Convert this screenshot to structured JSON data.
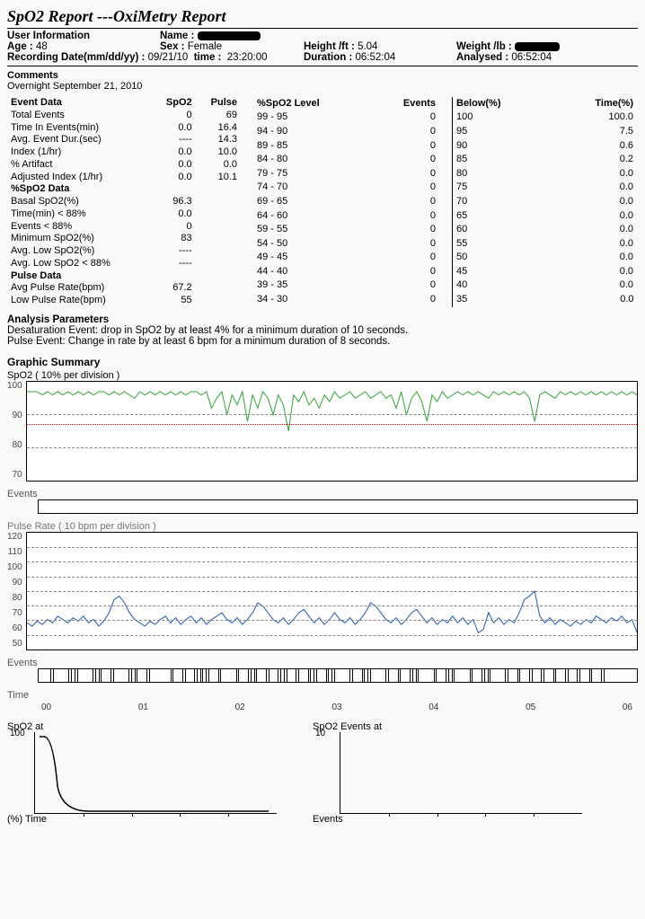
{
  "title": "SpO2 Report ---OxiMetry Report",
  "user_info": {
    "label": "User Information",
    "name_label": "Name :",
    "age_label": "Age :",
    "age": "48",
    "sex_label": "Sex :",
    "sex": "Female",
    "height_label": "Height /ft :",
    "height": "5.04",
    "weight_label": "Weight /lb :",
    "recdate_label": "Recording Date(mm/dd/yy) :",
    "recdate": "09/21/10",
    "time_label": "time :",
    "time": "23:20:00",
    "duration_label": "Duration :",
    "duration": "06:52:04",
    "analysed_label": "Analysed :",
    "analysed": "06:52:04"
  },
  "comments_label": "Comments",
  "comments": "Overnight September 21, 2010",
  "table1": {
    "headers": [
      "Event Data",
      "SpO2",
      "Pulse"
    ],
    "rows": [
      [
        "Total Events",
        "0",
        "69"
      ],
      [
        "Time In Events(min)",
        "0.0",
        "16.4"
      ],
      [
        "Avg. Event Dur.(sec)",
        "----",
        "14.3"
      ],
      [
        "Index (1/hr)",
        "0.0",
        "10.0"
      ],
      [
        "% Artifact",
        "0.0",
        "0.0"
      ],
      [
        "Adjusted Index (1/hr)",
        "0.0",
        "10.1"
      ]
    ],
    "sub1_label": "%SpO2 Data",
    "sub1_rows": [
      [
        "Basal SpO2(%)",
        "96.3",
        ""
      ],
      [
        "Time(min) < 88%",
        "0.0",
        ""
      ],
      [
        "Events < 88%",
        "0",
        ""
      ],
      [
        "Minimum SpO2(%)",
        "83",
        ""
      ],
      [
        "Avg. Low SpO2(%)",
        "----",
        ""
      ],
      [
        "Avg. Low SpO2 < 88%",
        "----",
        ""
      ]
    ],
    "sub2_label": "Pulse Data",
    "sub2_rows": [
      [
        "Avg Pulse Rate(bpm)",
        "67.2",
        ""
      ],
      [
        "Low Pulse Rate(bpm)",
        "55",
        ""
      ]
    ]
  },
  "table2": {
    "headers": [
      "%SpO2 Level",
      "Events"
    ],
    "rows": [
      [
        "99 - 95",
        "0"
      ],
      [
        "94 - 90",
        "0"
      ],
      [
        "89 - 85",
        "0"
      ],
      [
        "84 - 80",
        "0"
      ],
      [
        "79 - 75",
        "0"
      ],
      [
        "74 - 70",
        "0"
      ],
      [
        "69 - 65",
        "0"
      ],
      [
        "64 - 60",
        "0"
      ],
      [
        "59 - 55",
        "0"
      ],
      [
        "54 - 50",
        "0"
      ],
      [
        "49 - 45",
        "0"
      ],
      [
        "44 - 40",
        "0"
      ],
      [
        "39 - 35",
        "0"
      ],
      [
        "34 - 30",
        "0"
      ]
    ]
  },
  "table3": {
    "headers": [
      "Below(%)",
      "Time(%)"
    ],
    "rows": [
      [
        "100",
        "100.0"
      ],
      [
        "95",
        "7.5"
      ],
      [
        "90",
        "0.6"
      ],
      [
        "85",
        "0.2"
      ],
      [
        "80",
        "0.0"
      ],
      [
        "75",
        "0.0"
      ],
      [
        "70",
        "0.0"
      ],
      [
        "65",
        "0.0"
      ],
      [
        "60",
        "0.0"
      ],
      [
        "55",
        "0.0"
      ],
      [
        "50",
        "0.0"
      ],
      [
        "45",
        "0.0"
      ],
      [
        "40",
        "0.0"
      ],
      [
        "35",
        "0.0"
      ]
    ]
  },
  "analysis": {
    "label": "Analysis Parameters",
    "line1": "Desaturation Event: drop in SpO2 by at least 4% for a minimum duration of 10 seconds.",
    "line2": "Pulse Event: Change in rate by at least 6 bpm for a minimum duration of 8 seconds."
  },
  "graphic_label": "Graphic Summary",
  "spo2_chart": {
    "label": "SpO2      ( 10% per division )",
    "yticks": [
      "100",
      "90",
      "80",
      "70"
    ],
    "ylim": [
      70,
      100
    ],
    "grid_pct": [
      33.3,
      66.6
    ],
    "alert_pct": 43,
    "color": "#3aa53a",
    "bg": "#ffffff",
    "height": 110
  },
  "events1_label": "Events",
  "pulse_chart": {
    "label": "Pulse Rate  ( 10 bpm per division )",
    "yticks": [
      "120",
      "110",
      "100",
      "90",
      "80",
      "70",
      "60",
      "50"
    ],
    "ylim": [
      50,
      120
    ],
    "grid_count": 7,
    "color": "#2a5fb0",
    "height": 130
  },
  "events2_label": "Events",
  "time_label": "Time",
  "time_ticks": [
    "00",
    "01",
    "02",
    "03",
    "04",
    "05",
    "06"
  ],
  "sc1": {
    "title": "SpO2 at",
    "ymax": "100",
    "ylabel": "(%) Time"
  },
  "sc2": {
    "title": "SpO2 Events at",
    "ymax": "10",
    "ylabel": "Events"
  },
  "spo2_series": [
    97,
    97,
    97,
    96,
    97,
    96,
    97,
    96,
    97,
    96,
    97,
    96,
    97,
    96,
    97,
    97,
    96,
    97,
    96,
    97,
    96,
    95,
    97,
    96,
    97,
    96,
    97,
    96,
    97,
    96,
    97,
    96,
    97,
    97,
    96,
    97,
    92,
    95,
    97,
    90,
    96,
    93,
    97,
    88,
    96,
    92,
    97,
    95,
    90,
    96,
    93,
    85,
    96,
    94,
    97,
    93,
    95,
    92,
    96,
    94,
    97,
    95,
    96,
    97,
    95,
    96,
    97,
    95,
    96,
    97,
    95,
    96,
    92,
    97,
    90,
    95,
    97,
    94,
    88,
    96,
    94,
    97,
    95,
    96,
    97,
    96,
    97,
    96,
    97,
    96,
    95,
    97,
    96,
    97,
    96,
    97,
    96,
    97,
    95,
    88,
    96,
    97,
    96,
    95,
    97,
    96,
    97,
    96,
    97,
    96,
    97,
    96,
    97,
    96,
    97,
    96,
    97,
    96,
    97,
    96
  ],
  "pulse_series": [
    66,
    64,
    67,
    65,
    68,
    66,
    70,
    68,
    66,
    69,
    67,
    70,
    66,
    68,
    64,
    67,
    72,
    80,
    82,
    78,
    72,
    68,
    66,
    64,
    67,
    65,
    68,
    70,
    66,
    69,
    65,
    68,
    70,
    66,
    69,
    65,
    68,
    70,
    72,
    68,
    66,
    69,
    65,
    68,
    72,
    78,
    76,
    72,
    68,
    66,
    69,
    65,
    68,
    72,
    74,
    70,
    66,
    69,
    65,
    68,
    72,
    68,
    66,
    69,
    65,
    68,
    72,
    78,
    76,
    72,
    68,
    66,
    69,
    65,
    68,
    72,
    74,
    70,
    66,
    69,
    65,
    68,
    66,
    70,
    66,
    69,
    65,
    68,
    60,
    62,
    72,
    66,
    69,
    65,
    68,
    66,
    72,
    80,
    82,
    85,
    70,
    66,
    69,
    65,
    68,
    66,
    64,
    67,
    65,
    68,
    66,
    70,
    68,
    66,
    69,
    67,
    70,
    66,
    68,
    60
  ],
  "event_ticks_pct": [
    2,
    5,
    6,
    9,
    10,
    12,
    15,
    16,
    18,
    22,
    24,
    26,
    27,
    28,
    30,
    33,
    35,
    36,
    38,
    40,
    41,
    43,
    45,
    46,
    48,
    49,
    52,
    54,
    55,
    58,
    60,
    62,
    63,
    66,
    68,
    69,
    72,
    74,
    75,
    78,
    80,
    82,
    84,
    86,
    88,
    90,
    92,
    94
  ]
}
